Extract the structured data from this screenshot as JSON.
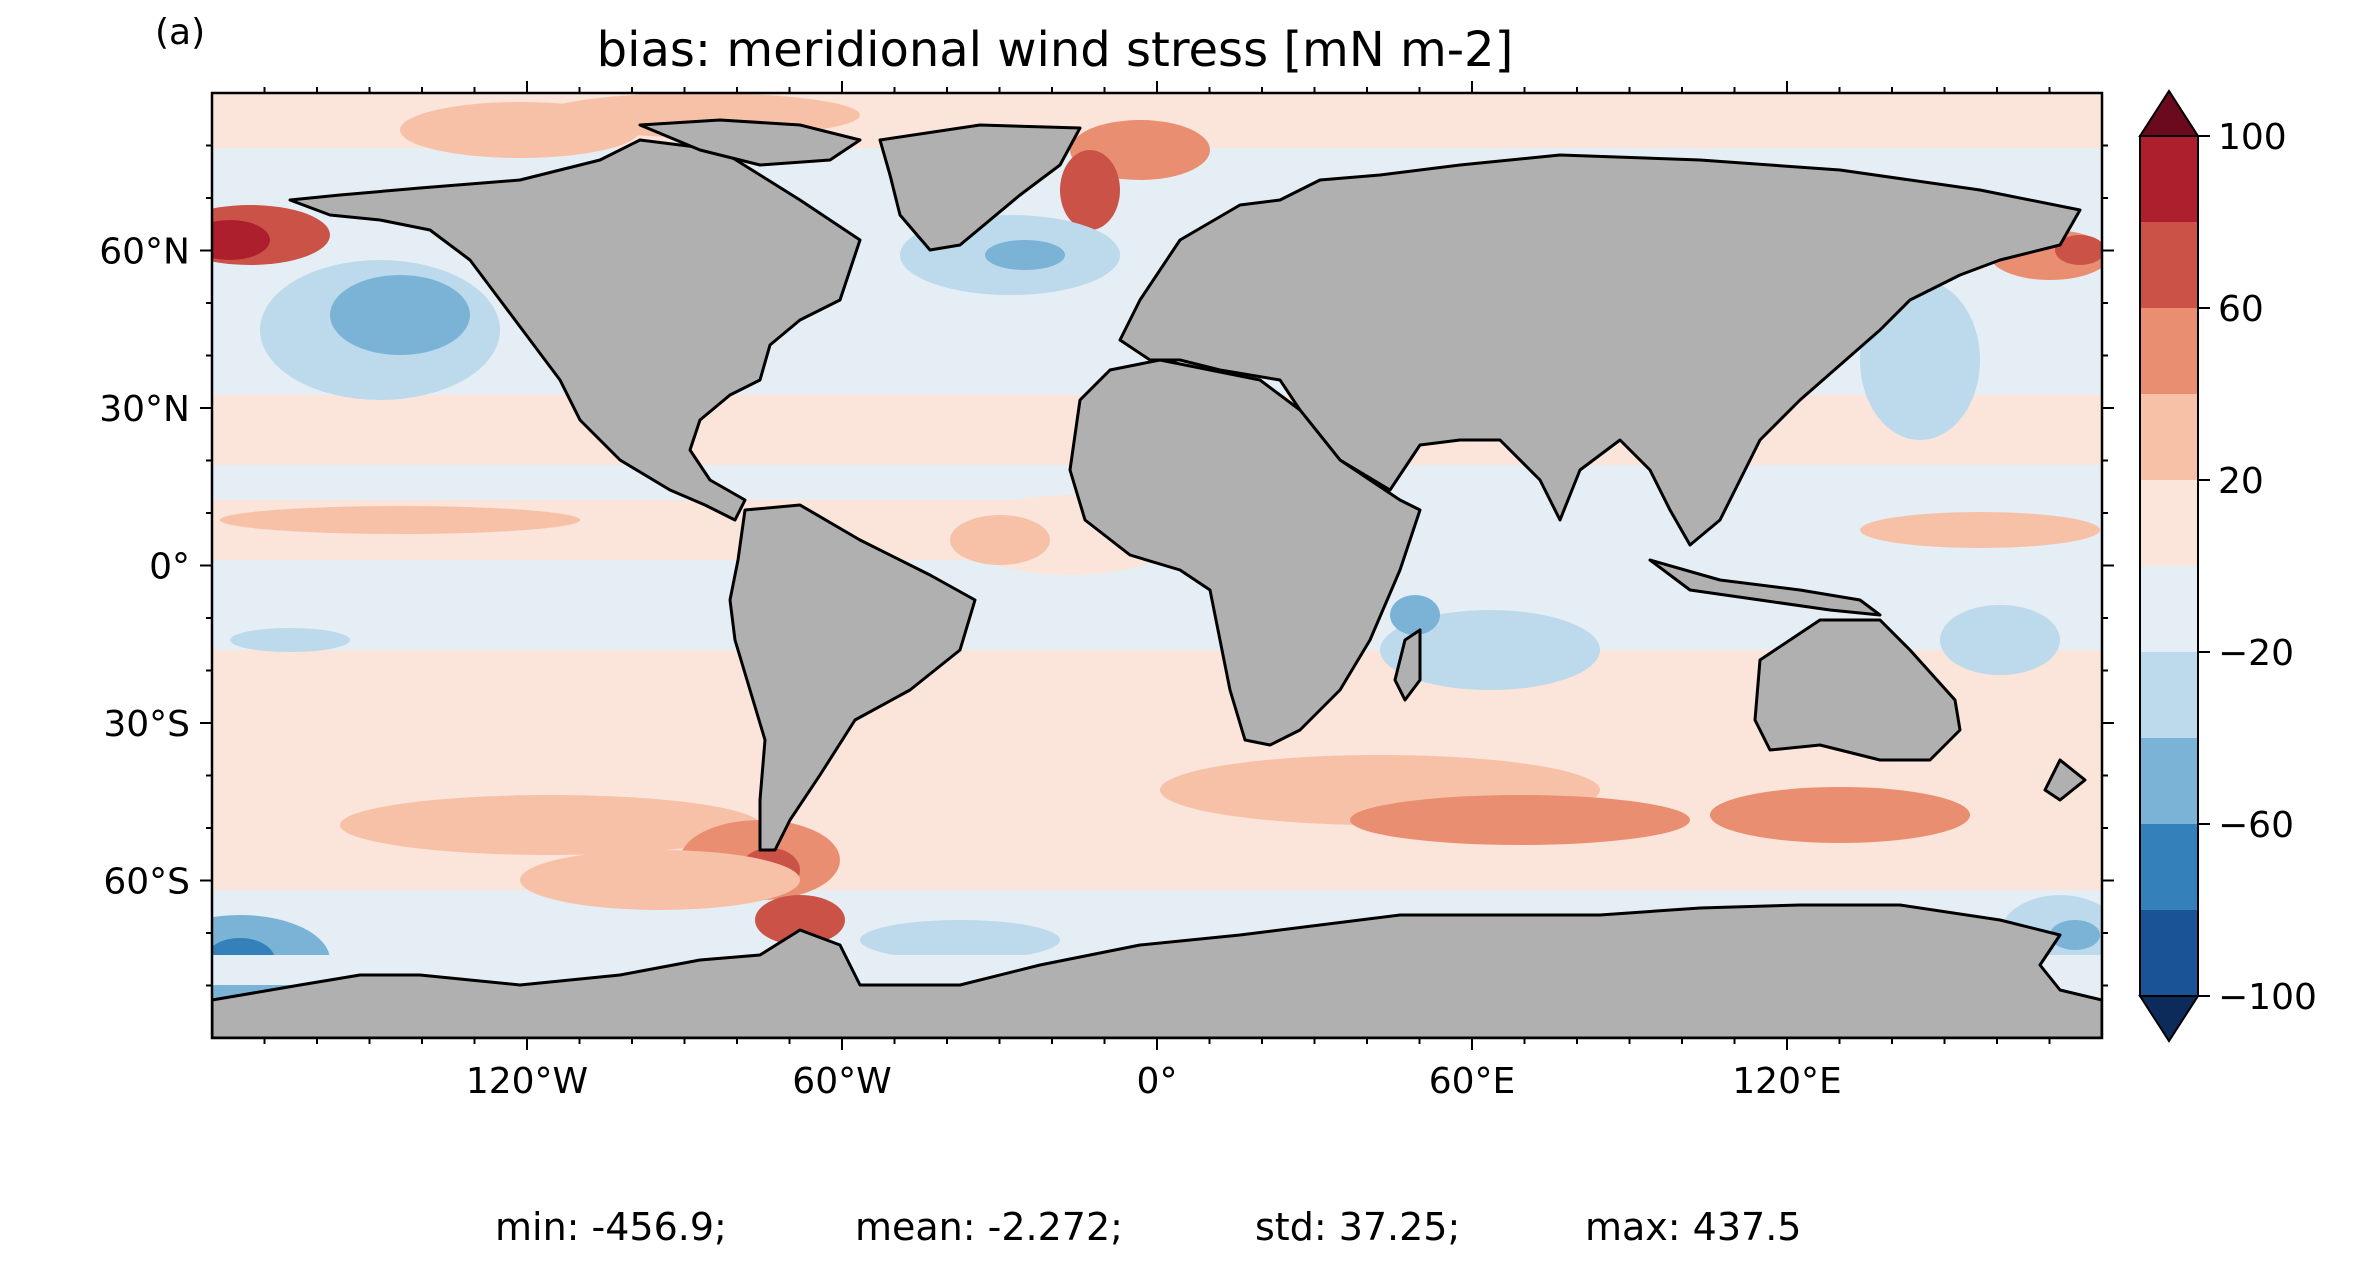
{
  "panel_label": "(a)",
  "title": "bias: meridional wind stress [mN m-2]",
  "map": {
    "projection": "PlateCarree",
    "extent": {
      "lon": [
        -180,
        180
      ],
      "lat": [
        -90,
        90
      ]
    },
    "land_color": "#b0b0b0",
    "coastline_color": "#000000",
    "lat_tick_labels": [
      "60°N",
      "30°N",
      "0°",
      "30°S",
      "60°S"
    ],
    "lat_ticks": [
      60,
      30,
      0,
      -30,
      -60
    ],
    "lon_tick_labels": [
      "120°W",
      "60°W",
      "0°",
      "60°E",
      "120°E"
    ],
    "lon_ticks": [
      -120,
      -60,
      0,
      60,
      120
    ]
  },
  "colorbar": {
    "extend": "both",
    "levels": [
      -100,
      -80,
      -60,
      -40,
      -20,
      0,
      20,
      40,
      60,
      80,
      100
    ],
    "tick_values": [
      100,
      60,
      20,
      -20,
      -60,
      -100
    ],
    "tick_labels": [
      "100",
      "60",
      "20",
      "−20",
      "−60",
      "−100"
    ],
    "colors_low_to_high": [
      "#1a5396",
      "#3480bb",
      "#7bb3d7",
      "#bcdaeb",
      "#e5eef5",
      "#fbe4d9",
      "#f7c1a7",
      "#e98e71",
      "#cb5247",
      "#ad1f2d"
    ],
    "under_color": "#0d2b5a",
    "over_color": "#6b0a1f"
  },
  "stats": {
    "min": "min: -456.9;",
    "mean": "mean: -2.272;",
    "std": "std: 37.25;",
    "max": "max: 437.5"
  }
}
